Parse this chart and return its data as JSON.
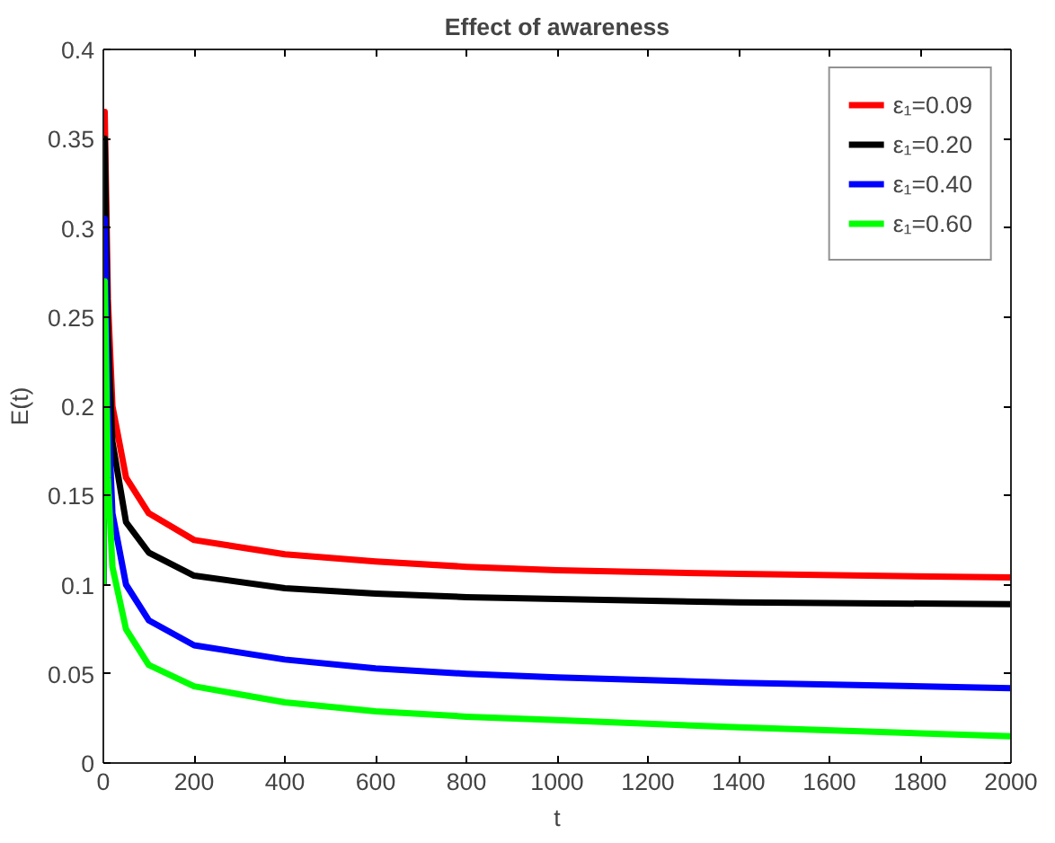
{
  "chart_data": {
    "type": "line",
    "title": "Effect of awareness",
    "xlabel": "t",
    "ylabel": "E(t)",
    "x": [
      0,
      3,
      10,
      20,
      50,
      100,
      200,
      400,
      600,
      800,
      1000,
      1400,
      2000
    ],
    "xlim": [
      0,
      2000
    ],
    "xticks": [
      0,
      200,
      400,
      600,
      800,
      1000,
      1200,
      1400,
      1600,
      1800,
      2000
    ],
    "ylim": [
      0,
      0.4
    ],
    "yticks": [
      0,
      0.05,
      0.1,
      0.15,
      0.2,
      0.25,
      0.3,
      0.35,
      0.4
    ],
    "grid": false,
    "legend": "top right",
    "line_style": "solid",
    "series": [
      {
        "name": "ε₁=0.09",
        "color": "#ff0000",
        "values": [
          0.1,
          0.365,
          0.26,
          0.2,
          0.16,
          0.14,
          0.125,
          0.117,
          0.113,
          0.11,
          0.108,
          0.106,
          0.104
        ]
      },
      {
        "name": "ε₁=0.20",
        "color": "#000000",
        "values": [
          0.1,
          0.35,
          0.24,
          0.18,
          0.135,
          0.118,
          0.105,
          0.098,
          0.095,
          0.093,
          0.092,
          0.09,
          0.089
        ]
      },
      {
        "name": "ε₁=0.40",
        "color": "#0000ff",
        "values": [
          0.1,
          0.305,
          0.2,
          0.14,
          0.1,
          0.08,
          0.066,
          0.058,
          0.053,
          0.05,
          0.048,
          0.045,
          0.042
        ]
      },
      {
        "name": "ε₁=0.60",
        "color": "#00ff00",
        "values": [
          0.1,
          0.27,
          0.16,
          0.11,
          0.075,
          0.055,
          0.043,
          0.034,
          0.029,
          0.026,
          0.024,
          0.02,
          0.015
        ]
      }
    ]
  }
}
